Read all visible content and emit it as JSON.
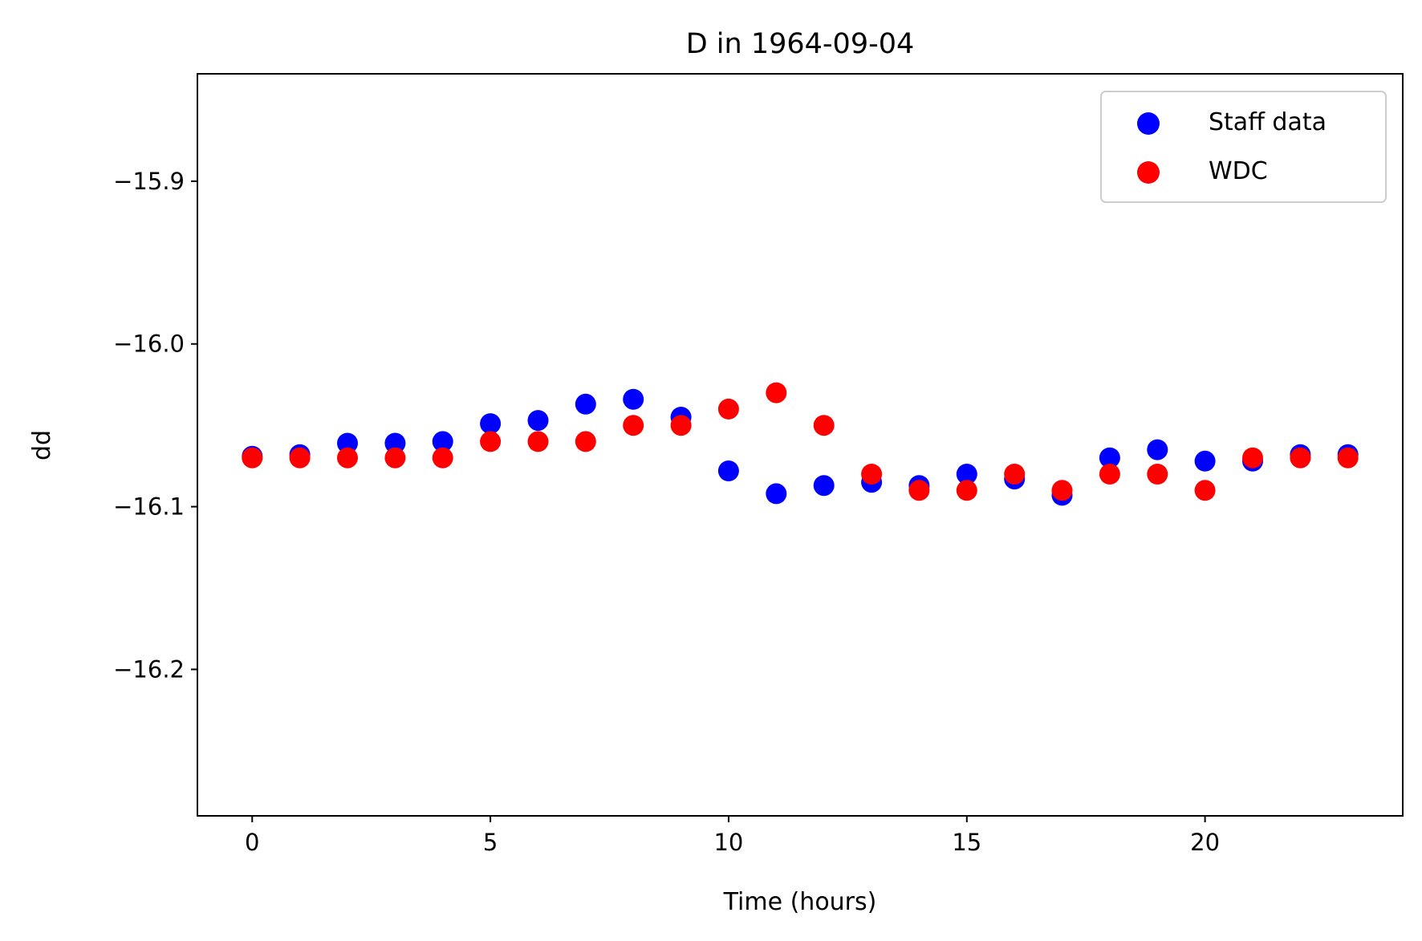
{
  "chart_data": {
    "type": "scatter",
    "title": "D in 1964-09-04",
    "xlabel": "Time (hours)",
    "ylabel": "dd",
    "xlim": [
      -1.15,
      24.15
    ],
    "ylim": [
      -16.29,
      -15.834
    ],
    "x_ticks": [
      0,
      5,
      10,
      15,
      20
    ],
    "x_tick_labels": [
      "0",
      "5",
      "10",
      "15",
      "20"
    ],
    "y_ticks": [
      -15.9,
      -16.0,
      -16.1,
      -16.2
    ],
    "y_tick_labels": [
      "−15.9",
      "−16.0",
      "−16.1",
      "−16.2"
    ],
    "grid": false,
    "legend_position": "top-right",
    "x": [
      0,
      1,
      2,
      3,
      4,
      5,
      6,
      7,
      8,
      9,
      10,
      11,
      12,
      13,
      14,
      15,
      16,
      17,
      18,
      19,
      20,
      21,
      22,
      23
    ],
    "series": [
      {
        "name": "Staff data",
        "color": "#0000ff",
        "values": [
          -16.069,
          -16.068,
          -16.061,
          -16.061,
          -16.06,
          -16.049,
          -16.047,
          -16.037,
          -16.034,
          -16.045,
          -16.078,
          -16.092,
          -16.087,
          -16.085,
          -16.087,
          -16.08,
          -16.083,
          -16.093,
          -16.07,
          -16.065,
          -16.072,
          -16.072,
          -16.068,
          -16.068
        ]
      },
      {
        "name": "WDC",
        "color": "#ff0000",
        "values": [
          -16.07,
          -16.07,
          -16.07,
          -16.07,
          -16.07,
          -16.06,
          -16.06,
          -16.06,
          -16.05,
          -16.05,
          -16.04,
          -16.03,
          -16.05,
          -16.08,
          -16.09,
          -16.09,
          -16.08,
          -16.09,
          -16.08,
          -16.08,
          -16.09,
          -16.07,
          -16.07,
          -16.07
        ]
      }
    ]
  }
}
